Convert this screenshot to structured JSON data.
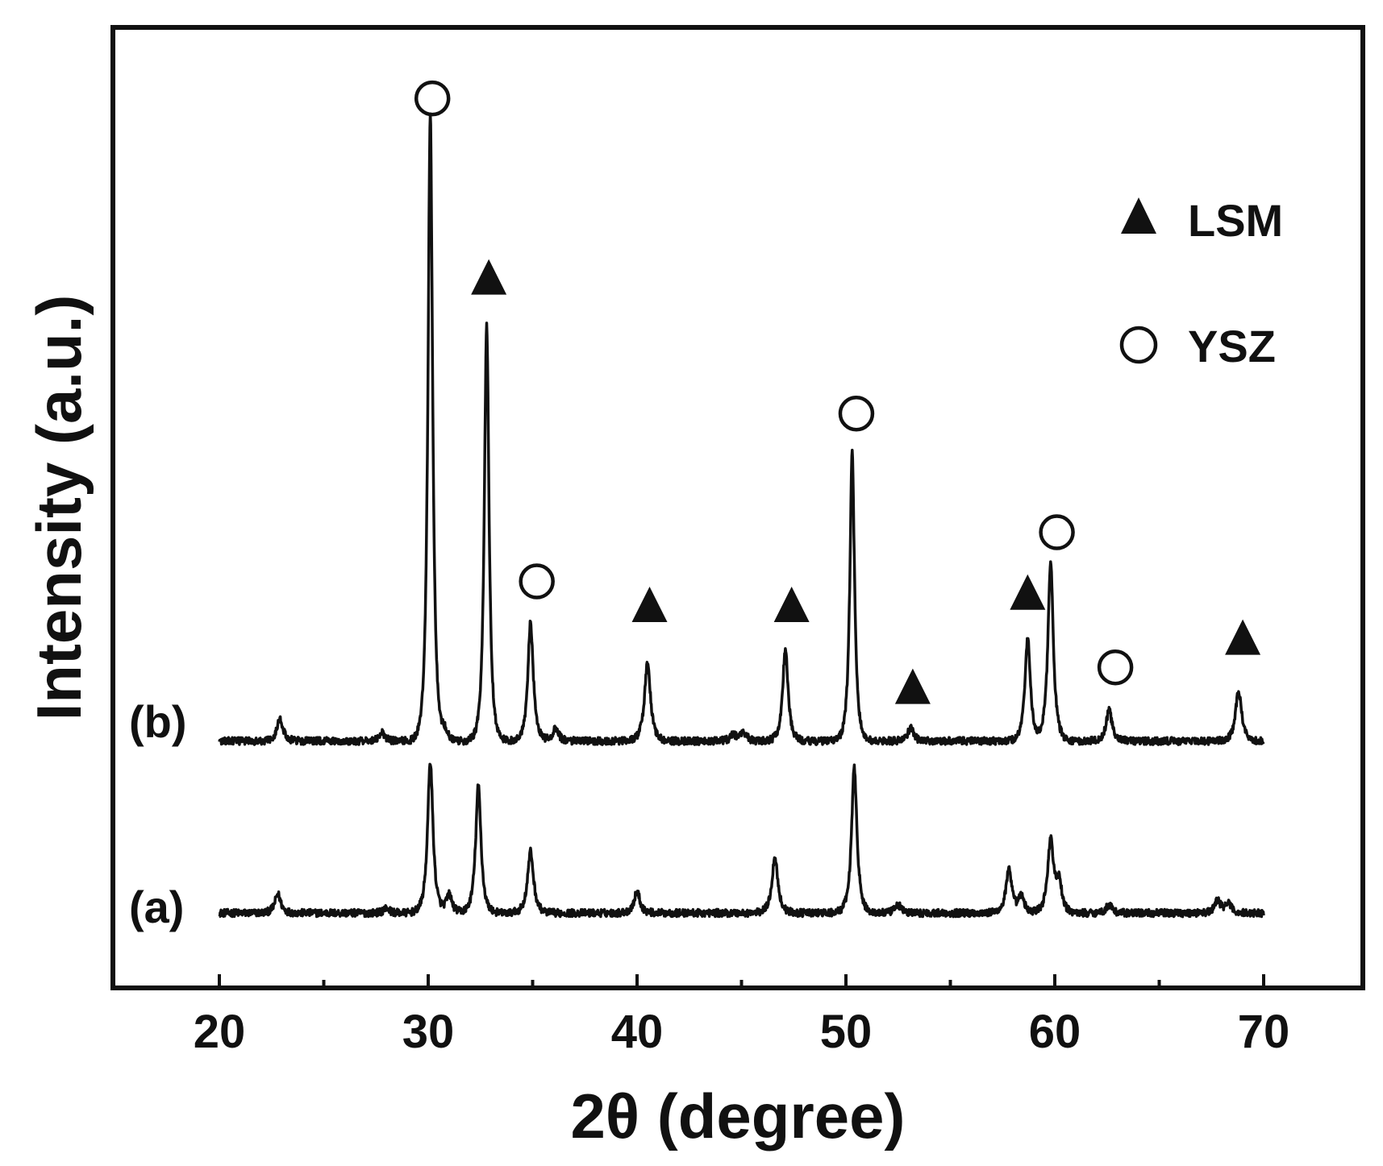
{
  "chart_data": {
    "type": "line",
    "xlabel": "2θ (degree)",
    "ylabel": "Intensity (a.u.)",
    "xlim": [
      15,
      75
    ],
    "ylim": [
      -10,
      115
    ],
    "x_ticks": [
      20,
      30,
      40,
      50,
      60,
      70
    ],
    "x_tick_labels": [
      "20",
      "30",
      "40",
      "50",
      "60",
      "70"
    ],
    "y_ticks_shown": false,
    "grid": false,
    "legend_position": "top-right",
    "legend": [
      {
        "label": "LSM",
        "marker": "filled-triangle"
      },
      {
        "label": "YSZ",
        "marker": "open-circle"
      }
    ],
    "series": [
      {
        "name": "(a)",
        "baseline": 0,
        "x_range": [
          20,
          70
        ],
        "peaks": [
          {
            "x": 22.8,
            "h": 2.3
          },
          {
            "x": 28.0,
            "h": 0.6
          },
          {
            "x": 30.1,
            "h": 18.5
          },
          {
            "x": 31.0,
            "h": 2.2
          },
          {
            "x": 32.4,
            "h": 15.5
          },
          {
            "x": 34.9,
            "h": 7.5
          },
          {
            "x": 40.0,
            "h": 2.6
          },
          {
            "x": 46.6,
            "h": 6.8
          },
          {
            "x": 50.4,
            "h": 17.7
          },
          {
            "x": 52.5,
            "h": 1.0
          },
          {
            "x": 57.8,
            "h": 5.2
          },
          {
            "x": 58.4,
            "h": 2.0
          },
          {
            "x": 59.8,
            "h": 8.8
          },
          {
            "x": 60.2,
            "h": 3.5
          },
          {
            "x": 62.6,
            "h": 1.0
          },
          {
            "x": 67.8,
            "h": 1.5
          },
          {
            "x": 68.3,
            "h": 1.2
          }
        ]
      },
      {
        "name": "(b)",
        "baseline": 21,
        "x_range": [
          20,
          70
        ],
        "peaks": [
          {
            "x": 22.9,
            "h": 2.8
          },
          {
            "x": 27.8,
            "h": 1.0
          },
          {
            "x": 30.1,
            "h": 77
          },
          {
            "x": 30.8,
            "h": 1.2
          },
          {
            "x": 32.8,
            "h": 51
          },
          {
            "x": 34.9,
            "h": 14.5
          },
          {
            "x": 36.1,
            "h": 1.5
          },
          {
            "x": 40.5,
            "h": 9.5
          },
          {
            "x": 44.6,
            "h": 0.8
          },
          {
            "x": 45.1,
            "h": 1.1
          },
          {
            "x": 47.1,
            "h": 11.2
          },
          {
            "x": 50.3,
            "h": 35.5
          },
          {
            "x": 53.1,
            "h": 1.6
          },
          {
            "x": 58.7,
            "h": 12.6
          },
          {
            "x": 59.8,
            "h": 21.8
          },
          {
            "x": 62.6,
            "h": 3.7
          },
          {
            "x": 68.8,
            "h": 6.2
          }
        ]
      }
    ],
    "phase_markers": [
      {
        "phase": "YSZ",
        "x": 30.2,
        "y": 99.5
      },
      {
        "phase": "LSM",
        "x": 32.9,
        "y": 77.5
      },
      {
        "phase": "YSZ",
        "x": 35.2,
        "y": 40.5
      },
      {
        "phase": "LSM",
        "x": 40.6,
        "y": 37.5
      },
      {
        "phase": "LSM",
        "x": 47.4,
        "y": 37.5
      },
      {
        "phase": "YSZ",
        "x": 50.5,
        "y": 61.0
      },
      {
        "phase": "LSM",
        "x": 53.2,
        "y": 27.5
      },
      {
        "phase": "LSM",
        "x": 58.7,
        "y": 39.0
      },
      {
        "phase": "YSZ",
        "x": 60.1,
        "y": 46.5
      },
      {
        "phase": "YSZ",
        "x": 62.9,
        "y": 30.0
      },
      {
        "phase": "LSM",
        "x": 69.0,
        "y": 33.5
      }
    ]
  },
  "colors": {
    "line": "#111111",
    "frame": "#111111",
    "background": "#ffffff"
  }
}
